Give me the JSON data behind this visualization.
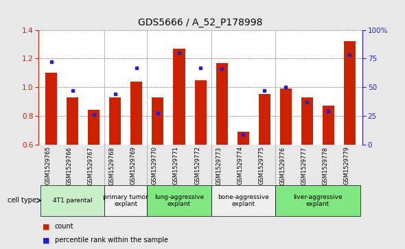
{
  "title": "GDS5666 / A_52_P178998",
  "samples": [
    "GSM1529765",
    "GSM1529766",
    "GSM1529767",
    "GSM1529768",
    "GSM1529769",
    "GSM1529770",
    "GSM1529771",
    "GSM1529772",
    "GSM1529773",
    "GSM1529774",
    "GSM1529775",
    "GSM1529776",
    "GSM1529777",
    "GSM1529778",
    "GSM1529779"
  ],
  "count_values": [
    1.1,
    0.93,
    0.84,
    0.93,
    1.04,
    0.93,
    1.27,
    1.05,
    1.17,
    0.69,
    0.95,
    0.99,
    0.93,
    0.87,
    1.32
  ],
  "percentile_values": [
    72,
    47,
    26,
    44,
    67,
    27,
    80,
    67,
    66,
    9,
    47,
    50,
    37,
    29,
    78
  ],
  "ylim_left": [
    0.6,
    1.4
  ],
  "ylim_right": [
    0,
    100
  ],
  "yticks_left": [
    0.6,
    0.8,
    1.0,
    1.2,
    1.4
  ],
  "yticks_right": [
    0,
    25,
    50,
    75,
    100
  ],
  "ytick_labels_right": [
    "0",
    "25",
    "50",
    "75",
    "100%"
  ],
  "bar_color": "#cc2200",
  "dot_color": "#2222cc",
  "fig_bg": "#e8e8e8",
  "plot_bg": "#ffffff",
  "sample_band_bg": "#cccccc",
  "cell_type_label": "cell type",
  "legend_count_label": "count",
  "legend_pct_label": "percentile rank within the sample",
  "groups": [
    {
      "indices": [
        0,
        1,
        2
      ],
      "label": "4T1 parental",
      "color": "#c8f0c8"
    },
    {
      "indices": [
        3,
        4
      ],
      "label": "primary tumor\nexplant",
      "color": "#f0f0f0"
    },
    {
      "indices": [
        5,
        6,
        7
      ],
      "label": "lung-aggressive\nexplant",
      "color": "#80e880"
    },
    {
      "indices": [
        8,
        9,
        10
      ],
      "label": "bone-aggressive\nexplant",
      "color": "#f0f0f0"
    },
    {
      "indices": [
        11,
        12,
        13,
        14
      ],
      "label": "liver-aggressive\nexplant",
      "color": "#80e880"
    }
  ],
  "group_boundaries": [
    2.5,
    4.5,
    7.5,
    10.5
  ],
  "bar_width": 0.55,
  "title_fontsize": 10,
  "tick_fontsize": 7.5,
  "sample_fontsize": 6,
  "group_fontsize": 6.5
}
